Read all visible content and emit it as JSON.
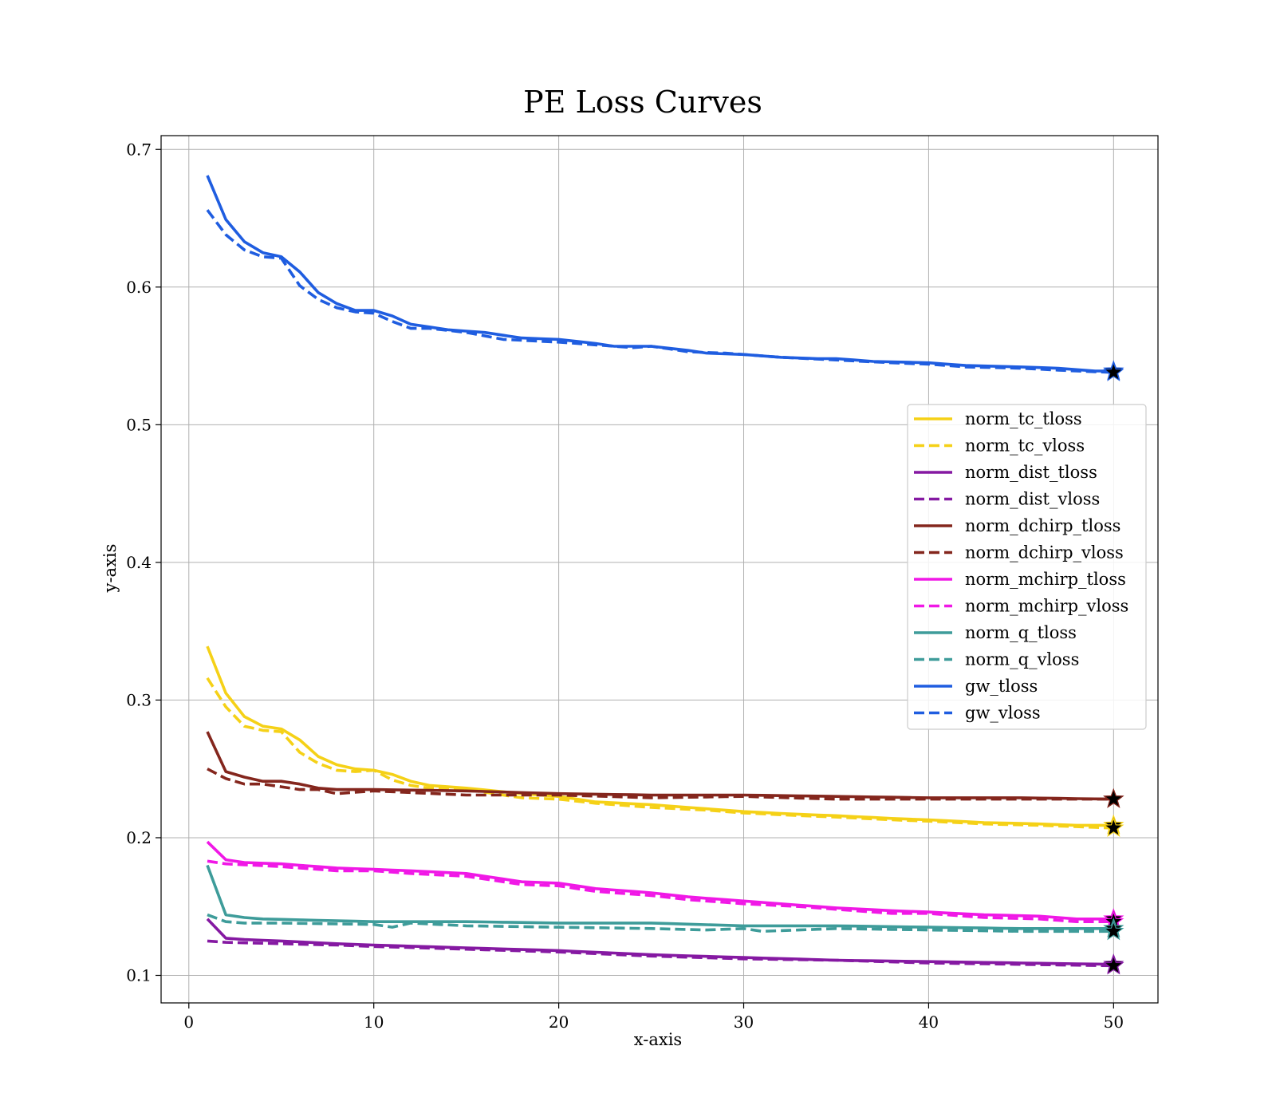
{
  "chart_data": {
    "type": "line",
    "title": "PE Loss Curves",
    "xlabel": "x-axis",
    "ylabel": "y-axis",
    "xlim": [
      -1.5,
      52.4
    ],
    "ylim": [
      0.08,
      0.71
    ],
    "xticks": [
      0,
      10,
      20,
      30,
      40,
      50
    ],
    "yticks": [
      0.1,
      0.2,
      0.3,
      0.4,
      0.5,
      0.6,
      0.7
    ],
    "grid": true,
    "legend_position": "center-right",
    "final_markers": "star",
    "series": [
      {
        "name": "norm_tc_tloss",
        "color": "#F5D117",
        "dash": "solid",
        "keypoints": [
          [
            1,
            0.339
          ],
          [
            2,
            0.305
          ],
          [
            3,
            0.288
          ],
          [
            4,
            0.281
          ],
          [
            5,
            0.279
          ],
          [
            6,
            0.271
          ],
          [
            7,
            0.259
          ],
          [
            8,
            0.253
          ],
          [
            9,
            0.25
          ],
          [
            10,
            0.249
          ],
          [
            11,
            0.246
          ],
          [
            12,
            0.241
          ],
          [
            13,
            0.238
          ],
          [
            15,
            0.236
          ],
          [
            18,
            0.232
          ],
          [
            20,
            0.23
          ],
          [
            22,
            0.226
          ],
          [
            25,
            0.224
          ],
          [
            28,
            0.221
          ],
          [
            30,
            0.219
          ],
          [
            33,
            0.217
          ],
          [
            35,
            0.216
          ],
          [
            38,
            0.214
          ],
          [
            40,
            0.213
          ],
          [
            43,
            0.211
          ],
          [
            46,
            0.21
          ],
          [
            48,
            0.209
          ],
          [
            50,
            0.209
          ]
        ]
      },
      {
        "name": "norm_tc_vloss",
        "color": "#F5D117",
        "dash": "dashed",
        "keypoints": [
          [
            1,
            0.316
          ],
          [
            2,
            0.295
          ],
          [
            3,
            0.281
          ],
          [
            4,
            0.278
          ],
          [
            5,
            0.277
          ],
          [
            6,
            0.262
          ],
          [
            7,
            0.254
          ],
          [
            8,
            0.249
          ],
          [
            9,
            0.248
          ],
          [
            10,
            0.249
          ],
          [
            11,
            0.242
          ],
          [
            12,
            0.238
          ],
          [
            13,
            0.236
          ],
          [
            15,
            0.235
          ],
          [
            18,
            0.229
          ],
          [
            20,
            0.228
          ],
          [
            22,
            0.225
          ],
          [
            25,
            0.222
          ],
          [
            28,
            0.22
          ],
          [
            30,
            0.218
          ],
          [
            33,
            0.216
          ],
          [
            35,
            0.215
          ],
          [
            38,
            0.213
          ],
          [
            40,
            0.212
          ],
          [
            43,
            0.21
          ],
          [
            46,
            0.209
          ],
          [
            48,
            0.208
          ],
          [
            50,
            0.207
          ]
        ]
      },
      {
        "name": "norm_dist_tloss",
        "color": "#8519A2",
        "dash": "solid",
        "keypoints": [
          [
            1,
            0.141
          ],
          [
            2,
            0.127
          ],
          [
            3,
            0.126
          ],
          [
            5,
            0.125
          ],
          [
            8,
            0.123
          ],
          [
            10,
            0.122
          ],
          [
            15,
            0.12
          ],
          [
            20,
            0.118
          ],
          [
            25,
            0.115
          ],
          [
            30,
            0.113
          ],
          [
            35,
            0.111
          ],
          [
            40,
            0.11
          ],
          [
            45,
            0.109
          ],
          [
            50,
            0.108
          ]
        ]
      },
      {
        "name": "norm_dist_vloss",
        "color": "#8519A2",
        "dash": "dashed",
        "keypoints": [
          [
            1,
            0.125
          ],
          [
            2,
            0.124
          ],
          [
            5,
            0.123
          ],
          [
            8,
            0.122
          ],
          [
            10,
            0.121
          ],
          [
            15,
            0.119
          ],
          [
            20,
            0.117
          ],
          [
            25,
            0.114
          ],
          [
            30,
            0.112
          ],
          [
            35,
            0.111
          ],
          [
            40,
            0.109
          ],
          [
            45,
            0.108
          ],
          [
            50,
            0.107
          ]
        ]
      },
      {
        "name": "norm_dchirp_tloss",
        "color": "#84261D",
        "dash": "solid",
        "keypoints": [
          [
            1,
            0.277
          ],
          [
            2,
            0.248
          ],
          [
            3,
            0.244
          ],
          [
            4,
            0.241
          ],
          [
            5,
            0.241
          ],
          [
            6,
            0.239
          ],
          [
            7,
            0.236
          ],
          [
            8,
            0.235
          ],
          [
            10,
            0.235
          ],
          [
            15,
            0.234
          ],
          [
            20,
            0.232
          ],
          [
            25,
            0.231
          ],
          [
            30,
            0.231
          ],
          [
            35,
            0.23
          ],
          [
            40,
            0.229
          ],
          [
            45,
            0.229
          ],
          [
            50,
            0.228
          ]
        ]
      },
      {
        "name": "norm_dchirp_vloss",
        "color": "#84261D",
        "dash": "dashed",
        "keypoints": [
          [
            1,
            0.25
          ],
          [
            2,
            0.243
          ],
          [
            3,
            0.239
          ],
          [
            4,
            0.239
          ],
          [
            5,
            0.237
          ],
          [
            6,
            0.235
          ],
          [
            7,
            0.235
          ],
          [
            8,
            0.232
          ],
          [
            10,
            0.234
          ],
          [
            15,
            0.231
          ],
          [
            20,
            0.231
          ],
          [
            25,
            0.229
          ],
          [
            30,
            0.23
          ],
          [
            35,
            0.228
          ],
          [
            40,
            0.228
          ],
          [
            45,
            0.228
          ],
          [
            50,
            0.228
          ]
        ]
      },
      {
        "name": "norm_mchirp_tloss",
        "color": "#F018E6",
        "dash": "solid",
        "keypoints": [
          [
            1,
            0.197
          ],
          [
            2,
            0.184
          ],
          [
            3,
            0.182
          ],
          [
            5,
            0.181
          ],
          [
            8,
            0.178
          ],
          [
            10,
            0.177
          ],
          [
            12,
            0.176
          ],
          [
            15,
            0.174
          ],
          [
            18,
            0.168
          ],
          [
            20,
            0.167
          ],
          [
            22,
            0.163
          ],
          [
            25,
            0.16
          ],
          [
            27,
            0.157
          ],
          [
            30,
            0.154
          ],
          [
            33,
            0.151
          ],
          [
            35,
            0.149
          ],
          [
            38,
            0.147
          ],
          [
            40,
            0.146
          ],
          [
            43,
            0.144
          ],
          [
            46,
            0.143
          ],
          [
            48,
            0.141
          ],
          [
            50,
            0.141
          ]
        ]
      },
      {
        "name": "norm_mchirp_vloss",
        "color": "#F018E6",
        "dash": "dashed",
        "keypoints": [
          [
            1,
            0.183
          ],
          [
            2,
            0.181
          ],
          [
            5,
            0.179
          ],
          [
            8,
            0.176
          ],
          [
            10,
            0.176
          ],
          [
            12,
            0.174
          ],
          [
            15,
            0.172
          ],
          [
            18,
            0.166
          ],
          [
            20,
            0.165
          ],
          [
            22,
            0.161
          ],
          [
            25,
            0.158
          ],
          [
            27,
            0.155
          ],
          [
            30,
            0.152
          ],
          [
            33,
            0.15
          ],
          [
            35,
            0.148
          ],
          [
            38,
            0.145
          ],
          [
            40,
            0.145
          ],
          [
            43,
            0.142
          ],
          [
            46,
            0.141
          ],
          [
            48,
            0.139
          ],
          [
            50,
            0.139
          ]
        ]
      },
      {
        "name": "norm_q_tloss",
        "color": "#3E9C9A",
        "dash": "solid",
        "keypoints": [
          [
            1,
            0.18
          ],
          [
            2,
            0.144
          ],
          [
            3,
            0.142
          ],
          [
            4,
            0.141
          ],
          [
            10,
            0.139
          ],
          [
            15,
            0.139
          ],
          [
            20,
            0.138
          ],
          [
            25,
            0.138
          ],
          [
            30,
            0.136
          ],
          [
            35,
            0.136
          ],
          [
            40,
            0.135
          ],
          [
            45,
            0.134
          ],
          [
            50,
            0.134
          ]
        ]
      },
      {
        "name": "norm_q_vloss",
        "color": "#3E9C9A",
        "dash": "dashed",
        "keypoints": [
          [
            1,
            0.144
          ],
          [
            2,
            0.139
          ],
          [
            3,
            0.138
          ],
          [
            5,
            0.138
          ],
          [
            10,
            0.137
          ],
          [
            11,
            0.135
          ],
          [
            12,
            0.138
          ],
          [
            15,
            0.136
          ],
          [
            20,
            0.135
          ],
          [
            25,
            0.134
          ],
          [
            28,
            0.133
          ],
          [
            30,
            0.134
          ],
          [
            31,
            0.132
          ],
          [
            35,
            0.134
          ],
          [
            40,
            0.133
          ],
          [
            45,
            0.132
          ],
          [
            50,
            0.132
          ]
        ]
      },
      {
        "name": "gw_tloss",
        "color": "#1F5DE0",
        "dash": "solid",
        "keypoints": [
          [
            1,
            0.681
          ],
          [
            2,
            0.649
          ],
          [
            3,
            0.633
          ],
          [
            4,
            0.625
          ],
          [
            5,
            0.622
          ],
          [
            6,
            0.611
          ],
          [
            7,
            0.596
          ],
          [
            8,
            0.588
          ],
          [
            9,
            0.583
          ],
          [
            10,
            0.583
          ],
          [
            11,
            0.579
          ],
          [
            12,
            0.573
          ],
          [
            13,
            0.571
          ],
          [
            14,
            0.569
          ],
          [
            16,
            0.567
          ],
          [
            18,
            0.563
          ],
          [
            20,
            0.562
          ],
          [
            22,
            0.559
          ],
          [
            23,
            0.557
          ],
          [
            25,
            0.557
          ],
          [
            27,
            0.554
          ],
          [
            28,
            0.552
          ],
          [
            30,
            0.551
          ],
          [
            32,
            0.549
          ],
          [
            34,
            0.548
          ],
          [
            35,
            0.548
          ],
          [
            37,
            0.546
          ],
          [
            40,
            0.545
          ],
          [
            42,
            0.543
          ],
          [
            45,
            0.542
          ],
          [
            47,
            0.541
          ],
          [
            49,
            0.539
          ],
          [
            50,
            0.539
          ]
        ]
      },
      {
        "name": "gw_vloss",
        "color": "#1F5DE0",
        "dash": "dashed",
        "keypoints": [
          [
            1,
            0.656
          ],
          [
            2,
            0.638
          ],
          [
            3,
            0.627
          ],
          [
            4,
            0.622
          ],
          [
            5,
            0.621
          ],
          [
            6,
            0.601
          ],
          [
            7,
            0.591
          ],
          [
            8,
            0.585
          ],
          [
            9,
            0.582
          ],
          [
            10,
            0.581
          ],
          [
            11,
            0.575
          ],
          [
            12,
            0.57
          ],
          [
            13,
            0.57
          ],
          [
            15,
            0.567
          ],
          [
            17,
            0.562
          ],
          [
            20,
            0.56
          ],
          [
            22,
            0.558
          ],
          [
            24,
            0.556
          ],
          [
            25,
            0.557
          ],
          [
            27,
            0.553
          ],
          [
            29,
            0.552
          ],
          [
            30,
            0.551
          ],
          [
            32,
            0.549
          ],
          [
            35,
            0.547
          ],
          [
            38,
            0.545
          ],
          [
            40,
            0.544
          ],
          [
            42,
            0.542
          ],
          [
            45,
            0.541
          ],
          [
            48,
            0.539
          ],
          [
            50,
            0.538
          ]
        ]
      }
    ]
  }
}
